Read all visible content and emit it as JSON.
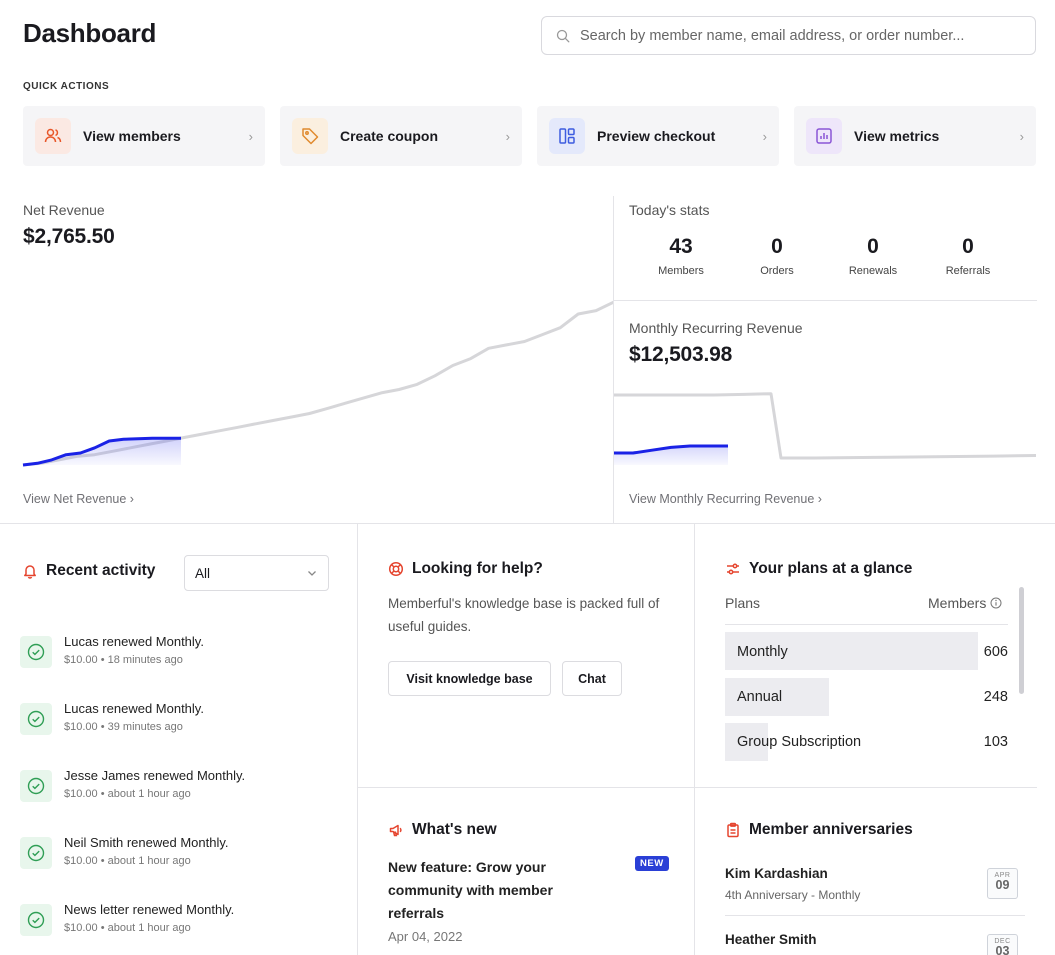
{
  "header": {
    "title": "Dashboard",
    "search_placeholder": "Search by member name, email address, or order number..."
  },
  "quick_actions": {
    "label": "QUICK ACTIONS",
    "items": [
      {
        "label": "View members",
        "icon": "users-icon",
        "color": "#e8572a",
        "bg": "#fbe9e3"
      },
      {
        "label": "Create coupon",
        "icon": "tag-icon",
        "color": "#e08a2e",
        "bg": "#fbefdf"
      },
      {
        "label": "Preview checkout",
        "icon": "layout-icon",
        "color": "#3d5ce0",
        "bg": "#e4e9fb"
      },
      {
        "label": "View metrics",
        "icon": "chart-icon",
        "color": "#8a55d6",
        "bg": "#eee6fa"
      }
    ]
  },
  "net_revenue": {
    "label": "Net Revenue",
    "value": "$2,765.50",
    "link": "View Net Revenue"
  },
  "today_stats": {
    "label": "Today's stats",
    "stats": [
      {
        "value": "43",
        "caption": "Members"
      },
      {
        "value": "0",
        "caption": "Orders"
      },
      {
        "value": "0",
        "caption": "Renewals"
      },
      {
        "value": "0",
        "caption": "Referrals"
      }
    ]
  },
  "mrr": {
    "label": "Monthly Recurring Revenue",
    "value": "$12,503.98",
    "link": "View Monthly Recurring Revenue"
  },
  "recent_activity": {
    "title": "Recent activity",
    "filter": "All",
    "items": [
      {
        "text": "Lucas renewed Monthly.",
        "meta": "$10.00 • 18 minutes ago"
      },
      {
        "text": "Lucas renewed Monthly.",
        "meta": "$10.00 • 39 minutes ago"
      },
      {
        "text": "Jesse James renewed Monthly.",
        "meta": "$10.00 • about 1 hour ago"
      },
      {
        "text": "Neil Smith renewed Monthly.",
        "meta": "$10.00 • about 1 hour ago"
      },
      {
        "text": "News letter renewed Monthly.",
        "meta": "$10.00 • about 1 hour ago"
      }
    ]
  },
  "help": {
    "title": "Looking for help?",
    "text": "Memberful's knowledge base is packed full of useful guides.",
    "kb_button": "Visit knowledge base",
    "chat_button": "Chat"
  },
  "whats_new": {
    "title": "What's new",
    "headline": "New feature: Grow your community with member referrals",
    "badge": "NEW",
    "date": "Apr 04, 2022"
  },
  "plans": {
    "title": "Your plans at a glance",
    "col_plans": "Plans",
    "col_members": "Members",
    "items": [
      {
        "name": "Monthly",
        "members": "606",
        "share": 1.0
      },
      {
        "name": "Annual",
        "members": "248",
        "share": 0.41
      },
      {
        "name": "Group Subscription",
        "members": "103",
        "share": 0.17
      }
    ]
  },
  "anniversaries": {
    "title": "Member anniversaries",
    "items": [
      {
        "name": "Kim Kardashian",
        "detail": "4th Anniversary - Monthly",
        "month": "APR",
        "day": "09"
      },
      {
        "name": "Heather Smith",
        "detail": "",
        "month": "DEC",
        "day": "03"
      }
    ]
  },
  "chart_data": [
    {
      "type": "line",
      "title": "Net Revenue",
      "series": [
        {
          "values": [
            0,
            1,
            3,
            6,
            7,
            10,
            14,
            15,
            15.3,
            15.6,
            15.6,
            15.6
          ]
        },
        {
          "values": [
            0,
            1,
            3,
            5,
            6,
            8,
            10,
            12,
            14,
            16,
            18,
            20,
            22,
            24,
            26,
            28,
            30,
            33,
            36,
            39,
            42,
            44,
            47,
            52,
            58,
            62,
            68,
            70,
            72,
            76,
            80,
            88,
            90,
            95
          ]
        }
      ]
    },
    {
      "type": "line",
      "title": "Monthly Recurring Revenue",
      "series": [
        {
          "values": [
            0,
            0,
            0.2,
            0.4,
            0.5,
            0.5,
            0.5
          ]
        },
        {
          "values": [
            10,
            10,
            10,
            10,
            10,
            10,
            10.1,
            10.2,
            0,
            0,
            0.1,
            0.2,
            0.3,
            0.4
          ]
        }
      ]
    }
  ]
}
